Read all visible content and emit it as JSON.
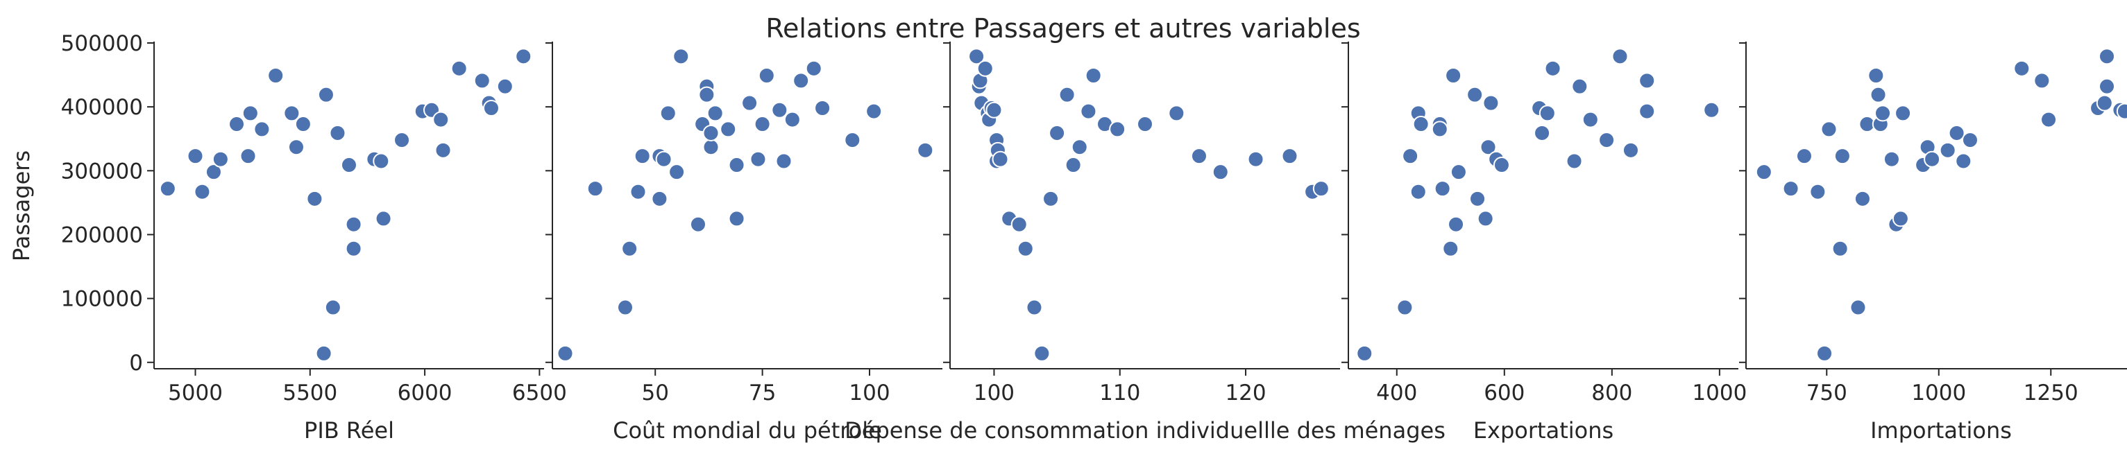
{
  "figure_title": "Relations entre Passagers et autres variables",
  "colors": {
    "marker": "#4c72b0",
    "marker_edge": "#ffffff",
    "axis": "#262626"
  },
  "y_axis": {
    "label": "Passagers",
    "ylim": [
      -10000,
      500000
    ],
    "ticks": [
      0,
      100000,
      200000,
      300000,
      400000,
      500000
    ],
    "tick_labels": [
      "0",
      "100000",
      "200000",
      "300000",
      "400000",
      "500000"
    ]
  },
  "chart_data": [
    {
      "type": "scatter",
      "xlabel": "PIB Réel",
      "ylabel": "Passagers",
      "xlim": [
        4820,
        6520
      ],
      "xticks": [
        5000,
        5500,
        6000,
        6500
      ],
      "xtick_labels": [
        "5000",
        "5500",
        "6000",
        "6500"
      ],
      "points": [
        [
          4880,
          272000
        ],
        [
          5000,
          323000
        ],
        [
          5030,
          267000
        ],
        [
          5080,
          298000
        ],
        [
          5110,
          318000
        ],
        [
          5180,
          373000
        ],
        [
          5240,
          390000
        ],
        [
          5230,
          323000
        ],
        [
          5290,
          365000
        ],
        [
          5350,
          449000
        ],
        [
          5420,
          390000
        ],
        [
          5440,
          337000
        ],
        [
          5470,
          373000
        ],
        [
          5520,
          256000
        ],
        [
          5570,
          419000
        ],
        [
          5560,
          14000
        ],
        [
          5600,
          86000
        ],
        [
          5620,
          359000
        ],
        [
          5670,
          309000
        ],
        [
          5690,
          216000
        ],
        [
          5690,
          178000
        ],
        [
          5780,
          318000
        ],
        [
          5810,
          315000
        ],
        [
          5820,
          225000
        ],
        [
          5900,
          348000
        ],
        [
          5990,
          393000
        ],
        [
          6030,
          395000
        ],
        [
          6070,
          380000
        ],
        [
          6080,
          332000
        ],
        [
          6150,
          460000
        ],
        [
          6250,
          441000
        ],
        [
          6280,
          406000
        ],
        [
          6290,
          398000
        ],
        [
          6350,
          432000
        ],
        [
          6430,
          479000
        ]
      ]
    },
    {
      "type": "scatter",
      "xlabel": "Coût mondial du pétrole",
      "ylabel": "",
      "xlim": [
        26,
        117
      ],
      "xticks": [
        50,
        75,
        100
      ],
      "xtick_labels": [
        "50",
        "75",
        "100"
      ],
      "points": [
        [
          29,
          14000
        ],
        [
          36,
          272000
        ],
        [
          43,
          86000
        ],
        [
          44,
          178000
        ],
        [
          46,
          267000
        ],
        [
          47,
          323000
        ],
        [
          51,
          323000
        ],
        [
          51,
          256000
        ],
        [
          52,
          318000
        ],
        [
          53,
          390000
        ],
        [
          55,
          298000
        ],
        [
          56,
          479000
        ],
        [
          60,
          216000
        ],
        [
          61,
          373000
        ],
        [
          62,
          432000
        ],
        [
          62,
          419000
        ],
        [
          63,
          337000
        ],
        [
          63,
          359000
        ],
        [
          64,
          390000
        ],
        [
          67,
          365000
        ],
        [
          69,
          309000
        ],
        [
          69,
          225000
        ],
        [
          72,
          406000
        ],
        [
          74,
          318000
        ],
        [
          75,
          373000
        ],
        [
          76,
          449000
        ],
        [
          79,
          395000
        ],
        [
          80,
          315000
        ],
        [
          82,
          380000
        ],
        [
          84,
          441000
        ],
        [
          87,
          460000
        ],
        [
          89,
          398000
        ],
        [
          96,
          348000
        ],
        [
          101,
          393000
        ],
        [
          113,
          332000
        ]
      ]
    },
    {
      "type": "scatter",
      "xlabel": "Dépense de consommation individuellle des ménages",
      "ylabel": "",
      "xlim": [
        96.5,
        127.5
      ],
      "xticks": [
        100,
        110,
        120
      ],
      "xtick_labels": [
        "100",
        "110",
        "120"
      ],
      "points": [
        [
          98.6,
          479000
        ],
        [
          98.8,
          432000
        ],
        [
          98.9,
          441000
        ],
        [
          99.0,
          406000
        ],
        [
          99.3,
          460000
        ],
        [
          99.5,
          390000
        ],
        [
          99.6,
          380000
        ],
        [
          99.8,
          398000
        ],
        [
          100.0,
          395000
        ],
        [
          100.2,
          348000
        ],
        [
          100.2,
          315000
        ],
        [
          100.3,
          332000
        ],
        [
          100.5,
          318000
        ],
        [
          101.2,
          225000
        ],
        [
          102.0,
          216000
        ],
        [
          102.5,
          178000
        ],
        [
          103.2,
          86000
        ],
        [
          103.8,
          14000
        ],
        [
          104.5,
          256000
        ],
        [
          105.0,
          359000
        ],
        [
          105.8,
          419000
        ],
        [
          106.3,
          309000
        ],
        [
          106.8,
          337000
        ],
        [
          107.5,
          393000
        ],
        [
          107.9,
          449000
        ],
        [
          108.8,
          373000
        ],
        [
          109.8,
          365000
        ],
        [
          112.0,
          373000
        ],
        [
          114.5,
          390000
        ],
        [
          116.3,
          323000
        ],
        [
          118.0,
          298000
        ],
        [
          120.8,
          318000
        ],
        [
          123.5,
          323000
        ],
        [
          125.3,
          267000
        ],
        [
          126.0,
          272000
        ]
      ]
    },
    {
      "type": "scatter",
      "xlabel": "Exportations",
      "ylabel": "",
      "xlim": [
        310,
        1035
      ],
      "xticks": [
        400,
        600,
        800,
        1000
      ],
      "xtick_labels": [
        "400",
        "600",
        "800",
        "1000"
      ],
      "points": [
        [
          340,
          14000
        ],
        [
          415,
          86000
        ],
        [
          425,
          323000
        ],
        [
          440,
          390000
        ],
        [
          440,
          267000
        ],
        [
          445,
          373000
        ],
        [
          480,
          373000
        ],
        [
          480,
          365000
        ],
        [
          485,
          272000
        ],
        [
          500,
          178000
        ],
        [
          505,
          449000
        ],
        [
          515,
          298000
        ],
        [
          510,
          216000
        ],
        [
          545,
          419000
        ],
        [
          550,
          256000
        ],
        [
          565,
          225000
        ],
        [
          570,
          337000
        ],
        [
          575,
          406000
        ],
        [
          585,
          318000
        ],
        [
          595,
          309000
        ],
        [
          665,
          398000
        ],
        [
          670,
          359000
        ],
        [
          680,
          390000
        ],
        [
          690,
          460000
        ],
        [
          730,
          315000
        ],
        [
          740,
          432000
        ],
        [
          760,
          380000
        ],
        [
          790,
          348000
        ],
        [
          815,
          479000
        ],
        [
          835,
          332000
        ],
        [
          865,
          441000
        ],
        [
          865,
          393000
        ],
        [
          985,
          395000
        ]
      ]
    },
    {
      "type": "scatter",
      "xlabel": "Importations",
      "ylabel": "",
      "xlim": [
        570,
        1440
      ],
      "xticks": [
        750,
        1000,
        1250
      ],
      "xtick_labels": [
        "750",
        "1000",
        "1250"
      ],
      "points": [
        [
          610,
          298000
        ],
        [
          670,
          272000
        ],
        [
          700,
          323000
        ],
        [
          730,
          267000
        ],
        [
          745,
          14000
        ],
        [
          755,
          365000
        ],
        [
          780,
          178000
        ],
        [
          785,
          323000
        ],
        [
          820,
          86000
        ],
        [
          830,
          256000
        ],
        [
          840,
          373000
        ],
        [
          860,
          449000
        ],
        [
          865,
          419000
        ],
        [
          870,
          373000
        ],
        [
          875,
          390000
        ],
        [
          895,
          318000
        ],
        [
          905,
          216000
        ],
        [
          915,
          225000
        ],
        [
          920,
          390000
        ],
        [
          965,
          309000
        ],
        [
          975,
          337000
        ],
        [
          985,
          318000
        ],
        [
          1020,
          332000
        ],
        [
          1040,
          359000
        ],
        [
          1055,
          315000
        ],
        [
          1070,
          348000
        ],
        [
          1185,
          460000
        ],
        [
          1230,
          441000
        ],
        [
          1245,
          380000
        ],
        [
          1355,
          398000
        ],
        [
          1370,
          406000
        ],
        [
          1375,
          432000
        ],
        [
          1375,
          479000
        ],
        [
          1405,
          395000
        ],
        [
          1415,
          393000
        ]
      ]
    }
  ]
}
